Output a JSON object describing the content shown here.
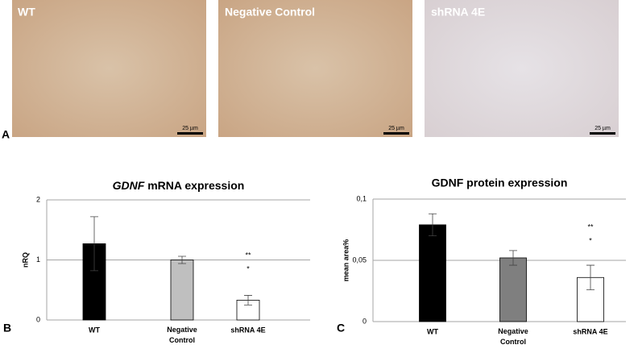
{
  "images": [
    {
      "label": "WT",
      "scale": "25 µm"
    },
    {
      "label": "Negative Control",
      "scale": "25 µm"
    },
    {
      "label": "shRNA 4E",
      "scale": "25 µm"
    }
  ],
  "panel_labels": [
    "A",
    "B",
    "C"
  ],
  "chart_data": [
    {
      "type": "bar",
      "title": "GDNF mRNA expression",
      "ylabel": "nRQ",
      "categories": [
        "WT",
        "Negative Control",
        "shRNA 4E"
      ],
      "values": [
        1.27,
        1.0,
        0.33
      ],
      "errors": [
        0.45,
        0.06,
        0.08
      ],
      "colors": [
        "#000000",
        "#bfbfbf",
        "#ffffff"
      ],
      "annotations": [
        "**",
        "*"
      ],
      "ylim": [
        0,
        2
      ],
      "yticks": [
        0,
        1,
        2
      ],
      "grid": true
    },
    {
      "type": "bar",
      "title": "GDNF protein expression",
      "ylabel": "mean area%",
      "categories": [
        "WT",
        "Negative Control",
        "shRNA 4E"
      ],
      "values": [
        0.079,
        0.052,
        0.036
      ],
      "errors": [
        0.009,
        0.006,
        0.01
      ],
      "colors": [
        "#000000",
        "#7f7f7f",
        "#ffffff"
      ],
      "annotations": [
        "**",
        "*"
      ],
      "ylim": [
        0,
        0.1
      ],
      "yticks": [
        0,
        {
          "value": 0.05,
          "label": "0,05"
        },
        {
          "value": 0.1,
          "label": "0,1"
        }
      ],
      "grid": true
    }
  ]
}
